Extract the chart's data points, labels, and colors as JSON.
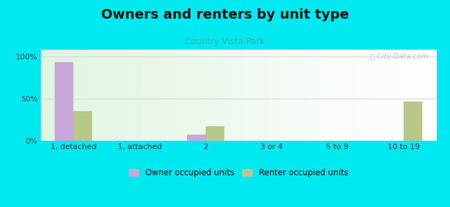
{
  "title": "Owners and renters by unit type",
  "subtitle": "Country Vista Park",
  "categories": [
    "1, detached",
    "1, attached",
    "2",
    "3 or 4",
    "5 to 9",
    "10 to 19"
  ],
  "owner_values": [
    93,
    0,
    7,
    0,
    0,
    0
  ],
  "renter_values": [
    35,
    0,
    17,
    0,
    0,
    47
  ],
  "owner_color": "#c8a8d8",
  "renter_color": "#b8c88a",
  "background_outer": "#00e8f0",
  "title_fontsize": 14,
  "subtitle_fontsize": 9,
  "subtitle_color": "#40b0b0",
  "ylabel_ticks": [
    "0%",
    "50%",
    "100%"
  ],
  "ytick_vals": [
    0,
    50,
    100
  ],
  "ylim": [
    0,
    108
  ],
  "bar_width": 0.28,
  "legend_labels": [
    "Owner occupied units",
    "Renter occupied units"
  ],
  "watermark": "ⓘ City-Data.com"
}
